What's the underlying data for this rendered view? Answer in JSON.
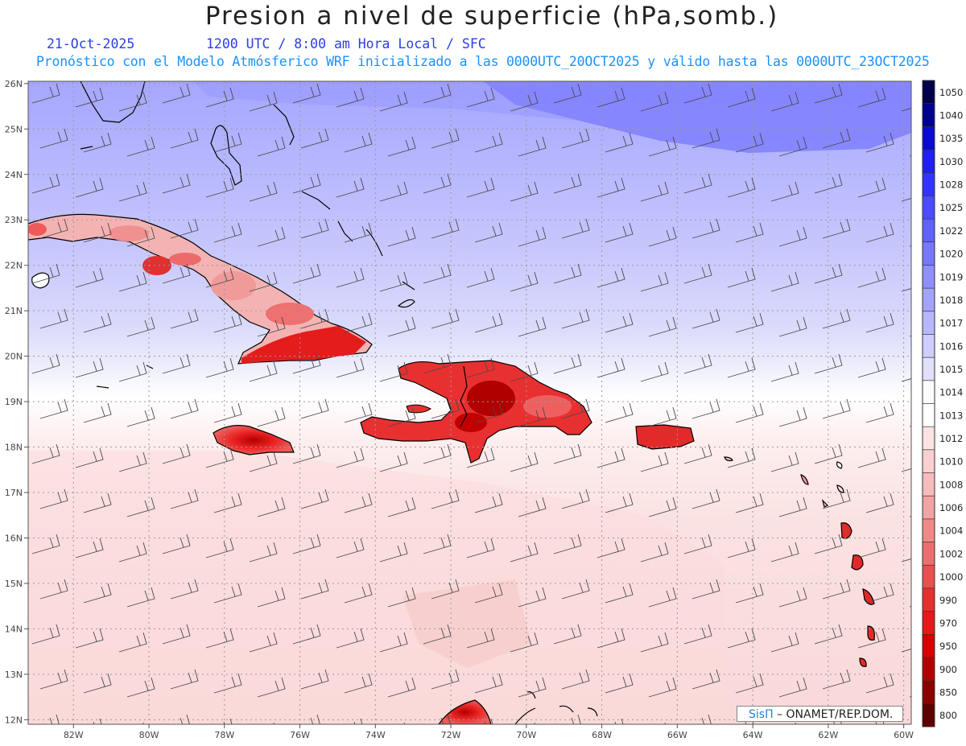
{
  "title": "Presion a nivel de superficie (hPa,somb.)",
  "date": "21-Oct-2025",
  "valid_line": "1200 UTC / 8:00 am Hora Local / SFC",
  "forecast_line": "Pronóstico con el Modelo Atmósferico WRF inicializado a las 0000UTC_20OCT2025 y válido hasta las  0000UTC_23OCT2025",
  "credit": {
    "logo": "SisΠ",
    "text": " – ONAMET/REP.DOM."
  },
  "map": {
    "lon_range": [
      -83.2,
      -59.8
    ],
    "lat_range": [
      11.9,
      26.05
    ],
    "lon_ticks": [
      "82W",
      "80W",
      "78W",
      "76W",
      "74W",
      "72W",
      "70W",
      "68W",
      "66W",
      "64W",
      "62W",
      "60W"
    ],
    "lat_ticks": [
      "12N",
      "13N",
      "14N",
      "15N",
      "16N",
      "17N",
      "18N",
      "19N",
      "20N",
      "21N",
      "22N",
      "23N",
      "24N",
      "25N",
      "26N"
    ]
  },
  "colorbar": {
    "labels": [
      "1050",
      "1040",
      "1035",
      "1030",
      "1028",
      "1025",
      "1022",
      "1020",
      "1019",
      "1018",
      "1017",
      "1016",
      "1015",
      "1014",
      "1013",
      "1012",
      "1010",
      "1008",
      "1006",
      "1004",
      "1002",
      "1000",
      "990",
      "970",
      "950",
      "900",
      "850",
      "800"
    ],
    "colors": [
      "#00004a",
      "#00008b",
      "#0a0ad0",
      "#1f1ff0",
      "#3333ff",
      "#4b4bff",
      "#6161ff",
      "#7878ff",
      "#8f8fff",
      "#a3a3ff",
      "#b7b7ff",
      "#cdcdff",
      "#e0e0fb",
      "#fcfcff",
      "#ffffff",
      "#fbe3e3",
      "#f9d0d0",
      "#f6bcbc",
      "#f3a3a3",
      "#f08a8a",
      "#ec6e6e",
      "#e85050",
      "#e63030",
      "#e31a1a",
      "#d60000",
      "#b40000",
      "#8c0000",
      "#5c0000"
    ]
  }
}
